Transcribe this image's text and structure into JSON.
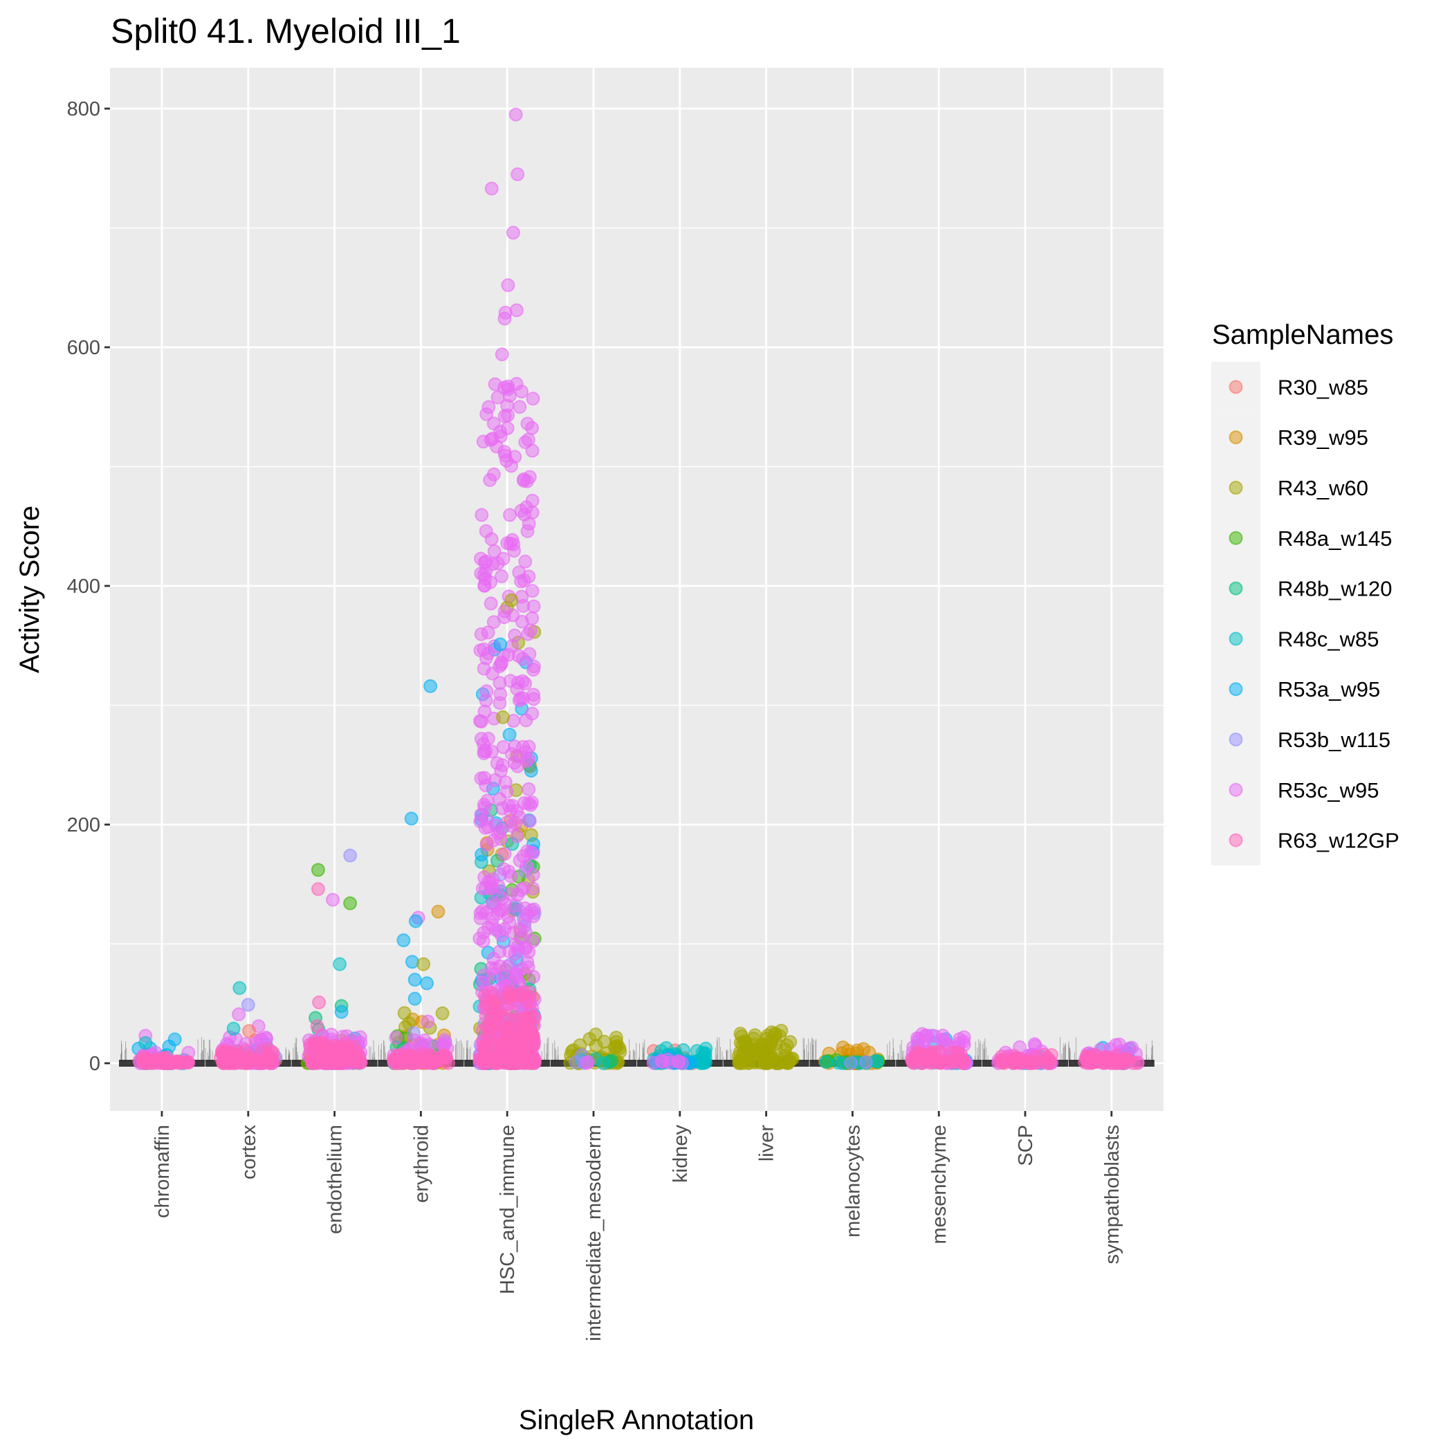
{
  "chart_data": {
    "type": "scatter",
    "subtype": "jittered strip plot over violin",
    "title": "Split0 41. Myeloid III_1",
    "xlabel": "SingleR Annotation",
    "ylabel": "Activity Score",
    "ylim": [
      -40,
      834
    ],
    "y_ticks": [
      0,
      200,
      400,
      600,
      800
    ],
    "y_minor_ticks": [
      100,
      300,
      500,
      700
    ],
    "grid": true,
    "categories": [
      "chromaffin",
      "cortex",
      "endothelium",
      "erythroid",
      "HSC_and_immune",
      "intermediate_mesoderm",
      "kidney",
      "liver",
      "melanocytes",
      "mesenchyme",
      "SCP",
      "sympathoblasts"
    ],
    "legend": {
      "title": "SampleNames",
      "position": "right",
      "entries": [
        {
          "name": "R30_w85",
          "color": "#F8766D"
        },
        {
          "name": "R39_w95",
          "color": "#D89000"
        },
        {
          "name": "R43_w60",
          "color": "#A3A500"
        },
        {
          "name": "R48a_w145",
          "color": "#39B600"
        },
        {
          "name": "R48b_w120",
          "color": "#00BF7D"
        },
        {
          "name": "R48c_w85",
          "color": "#00BFC4"
        },
        {
          "name": "R53a_w95",
          "color": "#00B0F6"
        },
        {
          "name": "R53b_w115",
          "color": "#9590FF"
        },
        {
          "name": "R53c_w95",
          "color": "#E76BF3"
        },
        {
          "name": "R63_w12GP",
          "color": "#FF62BC"
        }
      ]
    },
    "dense_clusters": [
      {
        "category": "chromaffin",
        "sample": "R53a_w95",
        "n": 14,
        "max": 15
      },
      {
        "category": "chromaffin",
        "sample": "R48c_w85",
        "n": 6,
        "max": 12
      },
      {
        "category": "chromaffin",
        "sample": "R53c_w95",
        "n": 22,
        "max": 12
      },
      {
        "category": "chromaffin",
        "sample": "R63_w12GP",
        "n": 40,
        "max": 5
      },
      {
        "category": "cortex",
        "sample": "R30_w85",
        "n": 6,
        "max": 20
      },
      {
        "category": "cortex",
        "sample": "R53a_w95",
        "n": 8,
        "max": 18
      },
      {
        "category": "cortex",
        "sample": "R53b_w115",
        "n": 6,
        "max": 18
      },
      {
        "category": "cortex",
        "sample": "R53c_w95",
        "n": 40,
        "max": 22
      },
      {
        "category": "cortex",
        "sample": "R63_w12GP",
        "n": 50,
        "max": 12
      },
      {
        "category": "endothelium",
        "sample": "R39_w95",
        "n": 6,
        "max": 18
      },
      {
        "category": "endothelium",
        "sample": "R43_w60",
        "n": 5,
        "max": 28
      },
      {
        "category": "endothelium",
        "sample": "R48a_w145",
        "n": 6,
        "max": 25
      },
      {
        "category": "endothelium",
        "sample": "R48b_w120",
        "n": 6,
        "max": 30
      },
      {
        "category": "endothelium",
        "sample": "R53a_w95",
        "n": 8,
        "max": 25
      },
      {
        "category": "endothelium",
        "sample": "R53c_w95",
        "n": 60,
        "max": 26
      },
      {
        "category": "endothelium",
        "sample": "R63_w12GP",
        "n": 70,
        "max": 18
      },
      {
        "category": "erythroid",
        "sample": "R39_w95",
        "n": 18,
        "max": 40
      },
      {
        "category": "erythroid",
        "sample": "R43_w60",
        "n": 12,
        "max": 42
      },
      {
        "category": "erythroid",
        "sample": "R48a_w145",
        "n": 5,
        "max": 30
      },
      {
        "category": "erythroid",
        "sample": "R48b_w120",
        "n": 6,
        "max": 35
      },
      {
        "category": "erythroid",
        "sample": "R53b_w115",
        "n": 3,
        "max": 35
      },
      {
        "category": "erythroid",
        "sample": "R53c_w95",
        "n": 45,
        "max": 22
      },
      {
        "category": "erythroid",
        "sample": "R63_w12GP",
        "n": 45,
        "max": 8
      },
      {
        "category": "HSC_and_immune",
        "sample": "R39_w95",
        "n": 25,
        "max": 270
      },
      {
        "category": "HSC_and_immune",
        "sample": "R43_w60",
        "n": 25,
        "max": 390
      },
      {
        "category": "HSC_and_immune",
        "sample": "R48a_w145",
        "n": 15,
        "max": 180
      },
      {
        "category": "HSC_and_immune",
        "sample": "R48b_w120",
        "n": 20,
        "max": 240
      },
      {
        "category": "HSC_and_immune",
        "sample": "R48c_w85",
        "n": 20,
        "max": 200
      },
      {
        "category": "HSC_and_immune",
        "sample": "R53a_w95",
        "n": 40,
        "max": 350
      },
      {
        "category": "HSC_and_immune",
        "sample": "R53b_w115",
        "n": 25,
        "max": 200
      },
      {
        "category": "HSC_and_immune",
        "sample": "R53c_w95",
        "n": 420,
        "max": 570
      },
      {
        "category": "HSC_and_immune",
        "sample": "R63_w12GP",
        "n": 160,
        "max": 60
      },
      {
        "category": "intermediate_mesoderm",
        "sample": "R43_w60",
        "n": 40,
        "max": 26
      },
      {
        "category": "intermediate_mesoderm",
        "sample": "R48b_w120",
        "n": 3,
        "max": 6
      },
      {
        "category": "intermediate_mesoderm",
        "sample": "R48c_w85",
        "n": 3,
        "max": 5
      },
      {
        "category": "intermediate_mesoderm",
        "sample": "R53b_w115",
        "n": 3,
        "max": 15
      },
      {
        "category": "intermediate_mesoderm",
        "sample": "R53c_w95",
        "n": 2,
        "max": 3
      },
      {
        "category": "kidney",
        "sample": "R30_w85",
        "n": 8,
        "max": 15
      },
      {
        "category": "kidney",
        "sample": "R48c_w85",
        "n": 45,
        "max": 14
      },
      {
        "category": "kidney",
        "sample": "R53a_w95",
        "n": 10,
        "max": 6
      },
      {
        "category": "kidney",
        "sample": "R53c_w95",
        "n": 8,
        "max": 4
      },
      {
        "category": "liver",
        "sample": "R43_w60",
        "n": 90,
        "max": 30
      },
      {
        "category": "melanocytes",
        "sample": "R39_w95",
        "n": 30,
        "max": 14
      },
      {
        "category": "melanocytes",
        "sample": "R48a_w145",
        "n": 8,
        "max": 3
      },
      {
        "category": "melanocytes",
        "sample": "R48c_w85",
        "n": 8,
        "max": 3
      },
      {
        "category": "melanocytes",
        "sample": "R53b_w115",
        "n": 2,
        "max": 3
      },
      {
        "category": "mesenchyme",
        "sample": "R53a_w95",
        "n": 15,
        "max": 22
      },
      {
        "category": "mesenchyme",
        "sample": "R53b_w115",
        "n": 5,
        "max": 28
      },
      {
        "category": "mesenchyme",
        "sample": "R53c_w95",
        "n": 50,
        "max": 25
      },
      {
        "category": "mesenchyme",
        "sample": "R63_w12GP",
        "n": 40,
        "max": 10
      },
      {
        "category": "SCP",
        "sample": "R30_w85",
        "n": 3,
        "max": 18
      },
      {
        "category": "SCP",
        "sample": "R53a_w95",
        "n": 6,
        "max": 12
      },
      {
        "category": "SCP",
        "sample": "R53c_w95",
        "n": 30,
        "max": 17
      },
      {
        "category": "SCP",
        "sample": "R63_w12GP",
        "n": 30,
        "max": 8
      },
      {
        "category": "sympathoblasts",
        "sample": "R53a_w95",
        "n": 14,
        "max": 16
      },
      {
        "category": "sympathoblasts",
        "sample": "R53c_w95",
        "n": 30,
        "max": 16
      },
      {
        "category": "sympathoblasts",
        "sample": "R63_w12GP",
        "n": 40,
        "max": 8
      }
    ],
    "points": [
      {
        "category": "chromaffin",
        "sample": "R53c_w95",
        "jitter": -0.19,
        "value": 23
      },
      {
        "category": "chromaffin",
        "sample": "R48c_w85",
        "jitter": -0.19,
        "value": 17
      },
      {
        "category": "chromaffin",
        "sample": "R53a_w95",
        "jitter": 0.15,
        "value": 20
      },
      {
        "category": "cortex",
        "sample": "R48c_w85",
        "jitter": -0.1,
        "value": 63
      },
      {
        "category": "cortex",
        "sample": "R53b_w115",
        "jitter": 0.0,
        "value": 49
      },
      {
        "category": "cortex",
        "sample": "R53c_w95",
        "jitter": -0.11,
        "value": 41
      },
      {
        "category": "cortex",
        "sample": "R53c_w95",
        "jitter": 0.12,
        "value": 31
      },
      {
        "category": "cortex",
        "sample": "R48c_w85",
        "jitter": -0.17,
        "value": 29
      },
      {
        "category": "cortex",
        "sample": "R30_w85",
        "jitter": 0.01,
        "value": 27
      },
      {
        "category": "endothelium",
        "sample": "R53b_w115",
        "jitter": 0.18,
        "value": 174
      },
      {
        "category": "endothelium",
        "sample": "R48a_w145",
        "jitter": -0.19,
        "value": 162
      },
      {
        "category": "endothelium",
        "sample": "R63_w12GP",
        "jitter": -0.19,
        "value": 146
      },
      {
        "category": "endothelium",
        "sample": "R53c_w95",
        "jitter": -0.02,
        "value": 137
      },
      {
        "category": "endothelium",
        "sample": "R48a_w145",
        "jitter": 0.18,
        "value": 134
      },
      {
        "category": "endothelium",
        "sample": "R48c_w85",
        "jitter": 0.06,
        "value": 83
      },
      {
        "category": "endothelium",
        "sample": "R63_w12GP",
        "jitter": -0.18,
        "value": 51
      },
      {
        "category": "endothelium",
        "sample": "R48b_w120",
        "jitter": 0.08,
        "value": 48
      },
      {
        "category": "endothelium",
        "sample": "R53a_w95",
        "jitter": 0.08,
        "value": 43
      },
      {
        "category": "endothelium",
        "sample": "R48b_w120",
        "jitter": -0.22,
        "value": 38
      },
      {
        "category": "endothelium",
        "sample": "R63_w12GP",
        "jitter": -0.2,
        "value": 31
      },
      {
        "category": "erythroid",
        "sample": "R53a_w95",
        "jitter": 0.11,
        "value": 316
      },
      {
        "category": "erythroid",
        "sample": "R53a_w95",
        "jitter": -0.11,
        "value": 205
      },
      {
        "category": "erythroid",
        "sample": "R39_w95",
        "jitter": 0.2,
        "value": 127
      },
      {
        "category": "erythroid",
        "sample": "R53c_w95",
        "jitter": -0.03,
        "value": 122
      },
      {
        "category": "erythroid",
        "sample": "R53a_w95",
        "jitter": -0.06,
        "value": 119
      },
      {
        "category": "erythroid",
        "sample": "R53a_w95",
        "jitter": -0.2,
        "value": 103
      },
      {
        "category": "erythroid",
        "sample": "R53a_w95",
        "jitter": -0.1,
        "value": 85
      },
      {
        "category": "erythroid",
        "sample": "R43_w60",
        "jitter": 0.03,
        "value": 83
      },
      {
        "category": "erythroid",
        "sample": "R53a_w95",
        "jitter": -0.07,
        "value": 70
      },
      {
        "category": "erythroid",
        "sample": "R53a_w95",
        "jitter": 0.07,
        "value": 67
      },
      {
        "category": "erythroid",
        "sample": "R53a_w95",
        "jitter": -0.07,
        "value": 54
      },
      {
        "category": "erythroid",
        "sample": "R43_w60",
        "jitter": -0.19,
        "value": 42
      },
      {
        "category": "erythroid",
        "sample": "R53c_w95",
        "jitter": 0.08,
        "value": 35
      },
      {
        "category": "HSC_and_immune",
        "sample": "R53c_w95",
        "jitter": 0.1,
        "value": 795
      },
      {
        "category": "HSC_and_immune",
        "sample": "R53c_w95",
        "jitter": 0.12,
        "value": 745
      },
      {
        "category": "HSC_and_immune",
        "sample": "R53c_w95",
        "jitter": -0.18,
        "value": 733
      },
      {
        "category": "HSC_and_immune",
        "sample": "R53c_w95",
        "jitter": 0.07,
        "value": 696
      },
      {
        "category": "HSC_and_immune",
        "sample": "R53c_w95",
        "jitter": 0.01,
        "value": 652
      },
      {
        "category": "HSC_and_immune",
        "sample": "R53c_w95",
        "jitter": 0.11,
        "value": 631
      },
      {
        "category": "HSC_and_immune",
        "sample": "R53c_w95",
        "jitter": -0.02,
        "value": 629
      },
      {
        "category": "HSC_and_immune",
        "sample": "R53c_w95",
        "jitter": -0.03,
        "value": 624
      },
      {
        "category": "HSC_and_immune",
        "sample": "R53c_w95",
        "jitter": -0.06,
        "value": 594
      },
      {
        "category": "HSC_and_immune",
        "sample": "R53c_w95",
        "jitter": -0.14,
        "value": 569
      },
      {
        "category": "HSC_and_immune",
        "sample": "R53c_w95",
        "jitter": -0.11,
        "value": 558
      },
      {
        "category": "HSC_and_immune",
        "sample": "R53c_w95",
        "jitter": 0.0,
        "value": 551
      },
      {
        "category": "HSC_and_immune",
        "sample": "R53a_w95",
        "jitter": -0.08,
        "value": 351
      },
      {
        "category": "HSC_and_immune",
        "sample": "R43_w60",
        "jitter": 0.05,
        "value": 388
      },
      {
        "category": "HSC_and_immune",
        "sample": "R43_w60",
        "jitter": -0.05,
        "value": 290
      }
    ]
  }
}
